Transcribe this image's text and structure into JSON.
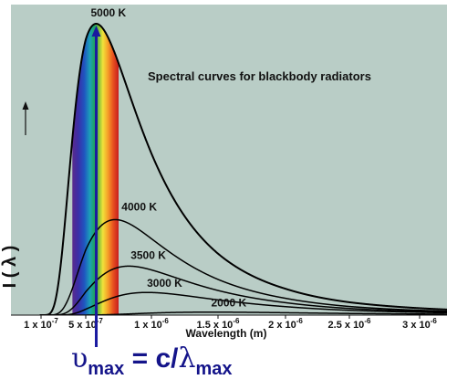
{
  "chart_data": {
    "type": "line",
    "title": "Spectral curves for blackbody radiators",
    "xlabel": "Wavelength (m)",
    "ylabel": "I ( λ )",
    "x_unit": "m",
    "xlim": [
      1e-07,
      3.2e-06
    ],
    "ylim": [
      0,
      1.0
    ],
    "x_tick_labels": [
      {
        "value": 1e-07,
        "mant": "1 x 10",
        "exp": "-7"
      },
      {
        "value": 5e-07,
        "mant": "5 x 10",
        "exp": "-7"
      },
      {
        "value": 1e-06,
        "mant": "1 x 10",
        "exp": "-6"
      },
      {
        "value": 1.5e-06,
        "mant": "1.5 x 10",
        "exp": "-6"
      },
      {
        "value": 2e-06,
        "mant": "2 x 10",
        "exp": "-6"
      },
      {
        "value": 2.5e-06,
        "mant": "2.5 x 10",
        "exp": "-6"
      },
      {
        "value": 3e-06,
        "mant": "3 x 10",
        "exp": "-6"
      }
    ],
    "visible_spectrum_nm": [
      380,
      750
    ],
    "peak_marker_wavelength": 5.8e-07,
    "grid": false,
    "series": [
      {
        "name": "5000 K",
        "temperature_K": 5000,
        "relative_peak": 1.0
      },
      {
        "name": "4000 K",
        "temperature_K": 4000,
        "relative_peak": 0.3277
      },
      {
        "name": "3500 K",
        "temperature_K": 3500,
        "relative_peak": 0.1681
      },
      {
        "name": "3000 K",
        "temperature_K": 3000,
        "relative_peak": 0.0778
      },
      {
        "name": "2000 K",
        "temperature_K": 2000,
        "relative_peak": 0.0102
      }
    ]
  },
  "formula": {
    "nu": "υ",
    "nu_sub": "max",
    "equals_c": " = c/",
    "lambda": "λ",
    "lambda_sub": "max"
  },
  "colors": {
    "plot_background": "#b9cdc6",
    "curve": "#000000",
    "arrow": "#1a1aa0",
    "formula": "#14148a"
  }
}
